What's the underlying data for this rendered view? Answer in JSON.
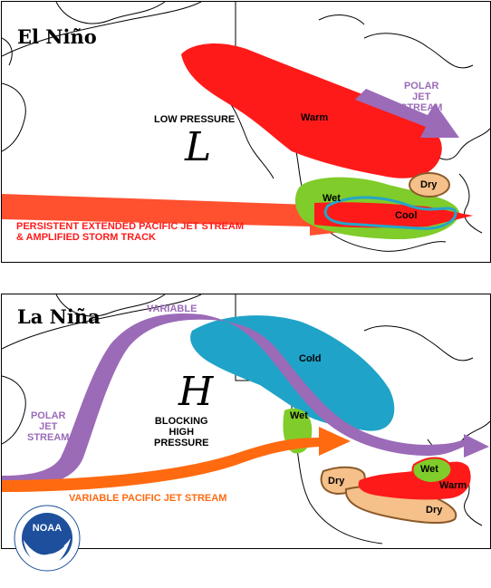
{
  "el_nino": {
    "title": "El Niño",
    "low_pressure": "LOW PRESSURE",
    "low_symbol": "L",
    "warm": "Warm",
    "polar_jet": [
      "POLAR",
      "JET",
      "STREAM"
    ],
    "dry": "Dry",
    "wet": "Wet",
    "cool": "Cool",
    "pacific_jet": [
      "PERSISTENT EXTENDED PACIFIC JET STREAM",
      "& AMPLIFIED STORM TRACK"
    ]
  },
  "la_nina": {
    "title": "La Niña",
    "variable": "VARIABLE",
    "cold": "Cold",
    "high_symbol": "H",
    "blocking": [
      "BLOCKING",
      "HIGH",
      "PRESSURE"
    ],
    "wet_nw": "Wet",
    "polar_jet": [
      "POLAR",
      "JET",
      "STREAM"
    ],
    "pacific_jet": "VARIABLE PACIFIC JET STREAM",
    "dry_sw": "Dry",
    "wet_east": "Wet",
    "warm": "Warm",
    "dry_south": "Dry"
  },
  "logo": {
    "text": "NOAA",
    "ring_text": "U.S. DEPARTMENT OF COMMERCE"
  },
  "colors": {
    "warm_red": "#ff1a1a",
    "polar_purple": "#9b6bb8",
    "wet_green": "#80cc2a",
    "dry_tan": "#f5c08a",
    "cool_blue": "#25a5c8",
    "cold_blue": "#1fa3c8",
    "jet_orange": "#ff6a10",
    "label_red": "#ff1a1a",
    "label_purple": "#9b6bb8",
    "label_orange": "#ff6a10"
  }
}
